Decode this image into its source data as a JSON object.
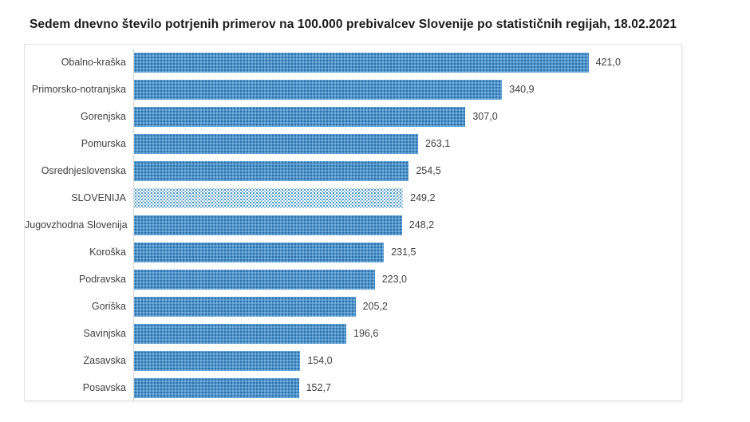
{
  "title": "Sedem dnevno število potrjenih primerov na 100.000 prebivalcev Slovenije po statističnih regijah, 18.02.2021",
  "colors": {
    "bar_fill": "#4e96cf",
    "bar_dot": "#14507f",
    "highlight_fill": "#f3f9fc",
    "highlight_dot": "#3f8ec1",
    "axis_line": "#d6d6d6",
    "chart_border": "#e2e2e2",
    "label_text": "#3f3f3f",
    "title_text": "#1a1a1a"
  },
  "chart_data": {
    "type": "bar",
    "orientation": "horizontal",
    "title": "Sedem dnevno število potrjenih primerov na 100.000 prebivalcev Slovenije po statističnih regijah, 18.02.2021",
    "categories": [
      "Obalno-kraška",
      "Primorsko-notranjska",
      "Gorenjska",
      "Pomurska",
      "Osrednjeslovenska",
      "SLOVENIJA",
      "Jugovzhodna Slovenija",
      "Koroška",
      "Podravska",
      "Goriška",
      "Savinjska",
      "Zasavska",
      "Posavska"
    ],
    "values": [
      421.0,
      340.9,
      307.0,
      263.1,
      254.5,
      249.2,
      248.2,
      231.5,
      223.0,
      205.2,
      196.6,
      154.0,
      152.7
    ],
    "value_labels": [
      "421,0",
      "340,9",
      "307,0",
      "263,1",
      "254,5",
      "249,2",
      "248,2",
      "231,5",
      "223,0",
      "205,2",
      "196,6",
      "154,0",
      "152,7"
    ],
    "highlight_index": 5,
    "highlight_category": "SLOVENIJA",
    "xlabel": "",
    "ylabel": "",
    "xlim": [
      0,
      507
    ],
    "grid": false,
    "legend": false,
    "value_label_position": "end-of-bar",
    "sorted": "descending"
  }
}
